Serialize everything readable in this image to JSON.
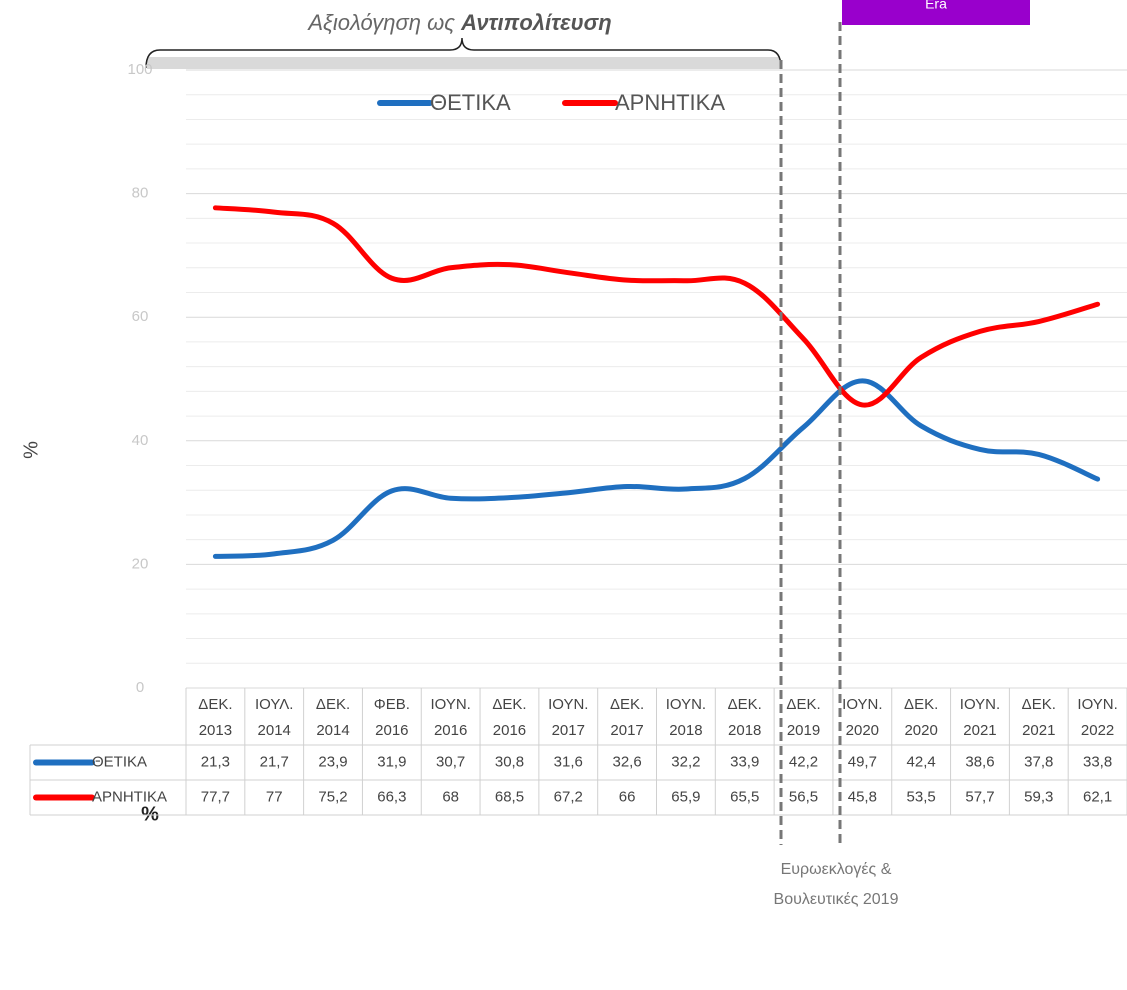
{
  "chart_data": {
    "type": "line",
    "title_parts": [
      "Αξιολόγηση ως ",
      "Αντιπολίτευση"
    ],
    "ylabel": "%",
    "footer_label": "%",
    "era_label": "Era",
    "annotation": [
      "Ευρωεκλογές &",
      "Βουλευτικές 2019"
    ],
    "categories": [
      [
        "ΔΕΚ.",
        "2013"
      ],
      [
        "ΙΟΥΛ.",
        "2014"
      ],
      [
        "ΔΕΚ.",
        "2014"
      ],
      [
        "ΦΕΒ.",
        "2016"
      ],
      [
        "ΙΟΥΝ.",
        "2016"
      ],
      [
        "ΔΕΚ.",
        "2016"
      ],
      [
        "ΙΟΥΝ.",
        "2017"
      ],
      [
        "ΔΕΚ.",
        "2017"
      ],
      [
        "ΙΟΥΝ.",
        "2018"
      ],
      [
        "ΔΕΚ.",
        "2018"
      ],
      [
        "ΔΕΚ.",
        "2019"
      ],
      [
        "ΙΟΥΝ.",
        "2020"
      ],
      [
        "ΔΕΚ.",
        "2020"
      ],
      [
        "ΙΟΥΝ.",
        "2021"
      ],
      [
        "ΔΕΚ.",
        "2021"
      ],
      [
        "ΙΟΥΝ.",
        "2022"
      ]
    ],
    "series": [
      {
        "name": "ΘΕΤΙΚΑ",
        "color": "#1f6fc0",
        "values": [
          21.3,
          21.7,
          23.9,
          31.9,
          30.7,
          30.8,
          31.6,
          32.6,
          32.2,
          33.9,
          42.2,
          49.7,
          42.4,
          38.6,
          37.8,
          33.8
        ],
        "value_labels": [
          "21,3",
          "21,7",
          "23,9",
          "31,9",
          "30,7",
          "30,8",
          "31,6",
          "32,6",
          "32,2",
          "33,9",
          "42,2",
          "49,7",
          "42,4",
          "38,6",
          "37,8",
          "33,8"
        ]
      },
      {
        "name": "ΑΡΝΗΤΙΚΑ",
        "color": "#ff0000",
        "values": [
          77.7,
          77,
          75.2,
          66.3,
          68,
          68.5,
          67.2,
          66,
          65.9,
          65.5,
          56.5,
          45.8,
          53.5,
          57.7,
          59.3,
          62.1
        ],
        "value_labels": [
          "77,7",
          "77",
          "75,2",
          "66,3",
          "68",
          "68,5",
          "67,2",
          "66",
          "65,9",
          "65,5",
          "56,5",
          "45,8",
          "53,5",
          "57,7",
          "59,3",
          "62,1"
        ]
      }
    ],
    "ylim": [
      0,
      100
    ],
    "yticks": [
      0,
      20,
      40,
      60,
      80,
      100
    ],
    "grid": true,
    "minor_grid": true,
    "legend": "top"
  }
}
